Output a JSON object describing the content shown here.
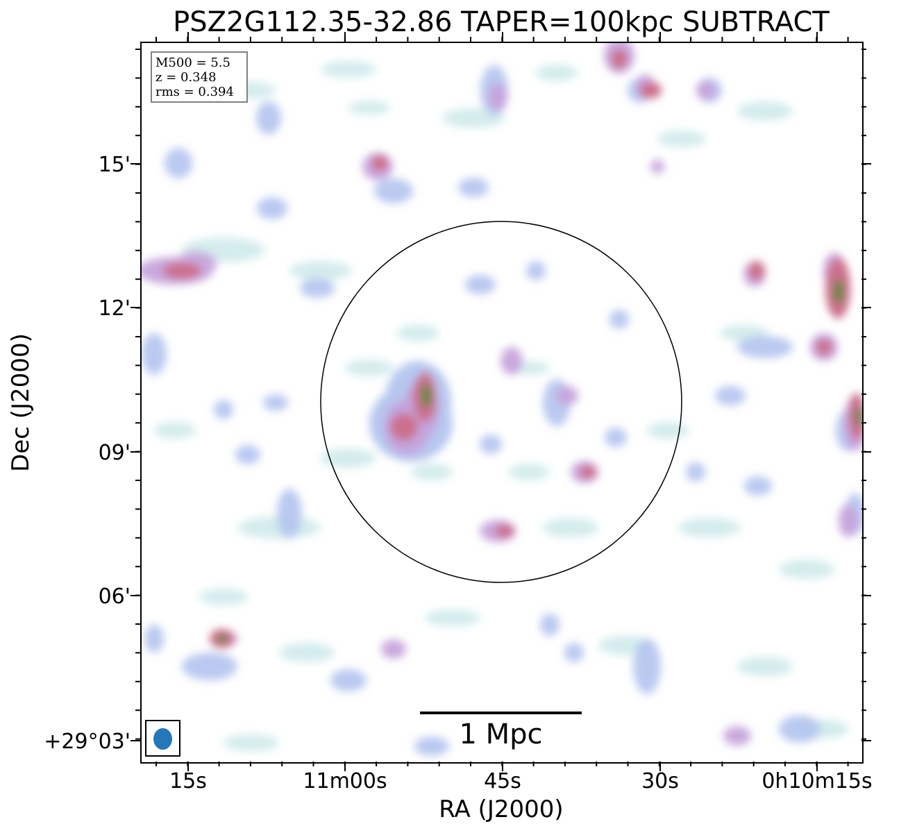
{
  "title": "PSZ2G112.35-32.86 TAPER=100kpc SUBTRACT",
  "info": {
    "m500": "M500 = 5.5",
    "z": "z = 0.348",
    "rms": "rms = 0.394"
  },
  "scalebar_label": "1 Mpc",
  "axes": {
    "xlabel": "RA (J2000)",
    "ylabel": "Dec (J2000)",
    "xticks": [
      "15s",
      "11m00s",
      "45s",
      "30s",
      "0h10m15s"
    ],
    "yticks": [
      "15'",
      "12'",
      "09'",
      "06'",
      "+29°03'"
    ]
  },
  "colors": {
    "faint": "#cde9ea",
    "low": "#b4c4f0",
    "mid": "#c6a2dc",
    "high": "#cc6f8c",
    "peak": "#4e8a34",
    "beam": "#2577b8",
    "circle": "#000000"
  },
  "beam_icon": "beam-ellipse"
}
